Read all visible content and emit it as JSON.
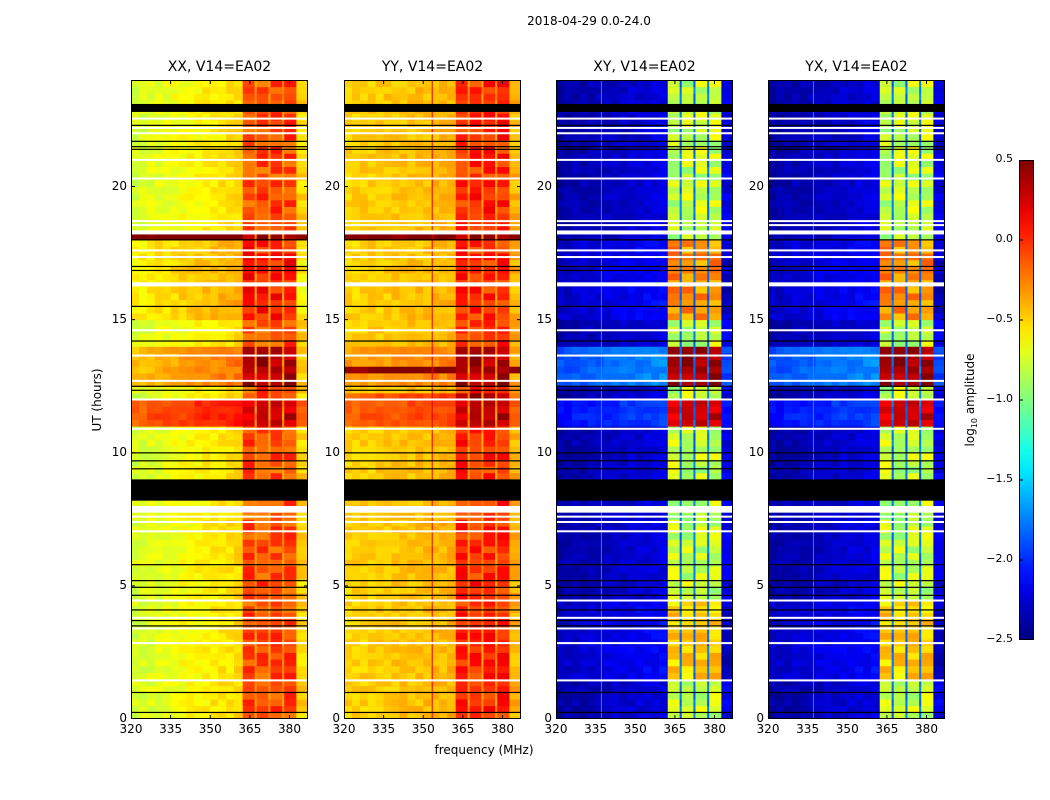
{
  "chart_data": {
    "type": "heatmap",
    "title": "2018-04-29 0.0-24.0",
    "xlabel": "frequency (MHz)",
    "ylabel": "UT (hours)",
    "xlim": [
      320,
      387
    ],
    "ylim": [
      0,
      24
    ],
    "xticks": [
      "320",
      "335",
      "350",
      "365",
      "380"
    ],
    "yticks": [
      "0",
      "5",
      "10",
      "15",
      "20"
    ],
    "colorbar": {
      "label_main": "log",
      "label_sub": "10",
      "label_rest": " amplitude",
      "min": -2.5,
      "max": 0.5,
      "ticks": [
        "0.5",
        "0.0",
        "−0.5",
        "−1.0",
        "−1.5",
        "−2.0",
        "−2.5"
      ],
      "colormap": "jet"
    },
    "band_channels_mhz": [
      [
        362.3,
        366.8
      ],
      [
        367.6,
        372.0
      ],
      [
        372.8,
        377.2
      ],
      [
        378.0,
        382.6
      ]
    ],
    "black_blocks_hours": [
      [
        8.2,
        9.0
      ],
      [
        22.8,
        23.1
      ]
    ],
    "white_blocks_hours": [
      [
        7.75,
        8.0
      ],
      [
        18.2,
        18.35
      ],
      [
        16.25,
        16.4
      ]
    ],
    "black_line_hours": [
      22.3,
      21.7,
      21.5,
      21.4,
      18.0,
      17.0,
      16.85,
      15.5,
      14.2,
      12.5,
      12.35,
      10.0,
      9.7,
      9.4,
      5.8,
      5.2,
      4.95,
      4.65,
      4.1,
      3.7,
      3.5,
      1.0,
      0.25
    ],
    "white_line_hours": [
      22.55,
      22.2,
      22.0,
      21.0,
      20.3,
      18.7,
      18.55,
      17.6,
      17.35,
      14.6,
      13.65,
      12.7,
      12.0,
      10.9,
      8.9,
      7.6,
      7.4,
      7.05,
      4.45,
      3.8,
      3.4,
      2.85,
      1.45
    ],
    "panels": [
      {
        "title": "XX, V14=EA02",
        "background_log_amp": [
          -0.75,
          -0.5
        ],
        "band_log_amp": -0.1,
        "gap_log_amp": -0.3,
        "events": [
          {
            "hours": [
              11.0,
              12.0
            ],
            "background": -0.15,
            "band": 0.3
          },
          {
            "hours": [
              12.5,
              14.0
            ],
            "background": -0.45,
            "band": 0.4
          },
          {
            "hours": [
              17.9,
              18.2
            ],
            "background": 0.45,
            "band": 0.45
          },
          {
            "hours": [
              15.0,
              18.0
            ],
            "background": -0.6,
            "band": 0.05
          }
        ],
        "spike_channels": []
      },
      {
        "title": "YY, V14=EA02",
        "background_log_amp": [
          -0.5,
          -0.4
        ],
        "band_log_amp": 0.0,
        "gap_log_amp": -0.3,
        "events": [
          {
            "hours": [
              11.0,
              12.3
            ],
            "background": -0.15,
            "band": 0.35
          },
          {
            "hours": [
              12.9,
              13.3
            ],
            "background": 0.45,
            "band": 0.45
          },
          {
            "hours": [
              12.5,
              14.0
            ],
            "background": -0.35,
            "band": 0.4
          },
          {
            "hours": [
              17.9,
              18.2
            ],
            "background": 0.45,
            "band": 0.45
          }
        ],
        "spike_channels": [
          {
            "mhz": 353.2,
            "log_amp": 0.2
          }
        ]
      },
      {
        "title": "XY, V14=EA02",
        "background_log_amp": [
          -2.4,
          -2.2
        ],
        "band_log_amp": -0.8,
        "gap_log_amp": -1.8,
        "events": [
          {
            "hours": [
              10.9,
              12.0
            ],
            "background": -2.1,
            "band": 0.3
          },
          {
            "hours": [
              12.5,
              14.0
            ],
            "background": -1.9,
            "band": 0.45
          },
          {
            "hours": [
              15.0,
              18.0
            ],
            "background": -2.3,
            "band": -0.3
          },
          {
            "hours": [
              1.5,
              4.5
            ],
            "background": -2.3,
            "band": -0.5
          }
        ],
        "spike_channels": [
          {
            "mhz": 337.0,
            "log_amp": -1.7
          }
        ]
      },
      {
        "title": "YX, V14=EA02",
        "background_log_amp": [
          -2.4,
          -2.2
        ],
        "band_log_amp": -0.8,
        "gap_log_amp": -1.8,
        "events": [
          {
            "hours": [
              10.9,
              12.0
            ],
            "background": -2.1,
            "band": 0.3
          },
          {
            "hours": [
              12.5,
              14.0
            ],
            "background": -1.9,
            "band": 0.45
          },
          {
            "hours": [
              15.0,
              18.0
            ],
            "background": -2.3,
            "band": -0.3
          },
          {
            "hours": [
              1.5,
              4.5
            ],
            "background": -2.3,
            "band": -0.5
          }
        ],
        "spike_channels": [
          {
            "mhz": 337.0,
            "log_amp": -1.7
          }
        ]
      }
    ]
  }
}
